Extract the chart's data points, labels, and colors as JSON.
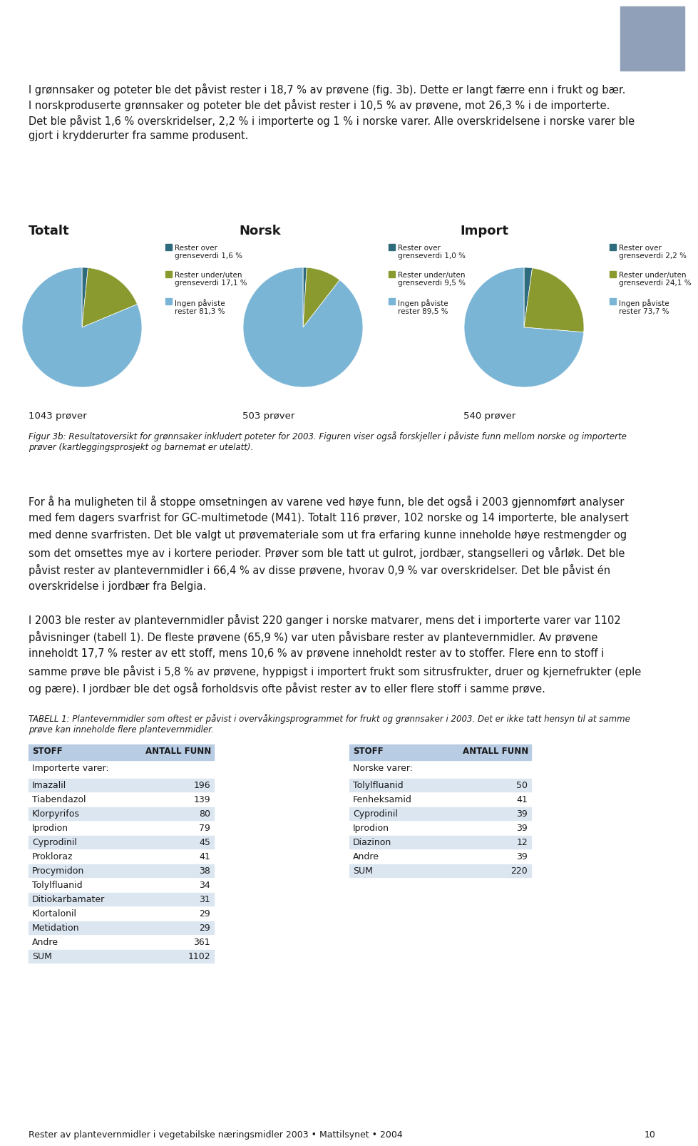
{
  "page_bg": "#ffffff",
  "top_rect_color": "#8fa0b8",
  "text_color": "#1a1a1a",
  "header_text": [
    "I grønnsaker og poteter ble det påvist rester i 18,7 % av prøvene (fig. 3b). Dette er langt færre enn i frukt og bær.",
    "I norskproduserte grønnsaker og poteter ble det påvist rester i 10,5 % av prøvene, mot 26,3 % i de importerte.",
    "Det ble påvist 1,6 % overskridelser, 2,2 % i importerte og 1 % i norske varer. Alle overskridelsene i norske varer ble",
    "gjort i krydderurter fra samme produsent."
  ],
  "pie_titles": [
    "Totalt",
    "Norsk",
    "Import"
  ],
  "pie_data": [
    [
      1.6,
      17.1,
      81.3
    ],
    [
      1.0,
      9.5,
      89.5
    ],
    [
      2.2,
      24.1,
      73.7
    ]
  ],
  "pie_colors": [
    "#2e6b7c",
    "#8a9a2e",
    "#7bb5d6"
  ],
  "pie_legend_labels": [
    [
      "Rester over\ngrenseverdi 1,6 %",
      "Rester under/uten\ngrenseverdi 17,1 %",
      "Ingen påviste\nrester 81,3 %"
    ],
    [
      "Rester over\ngrenseverdi 1,0 %",
      "Rester under/uten\ngrenseverdi 9,5 %",
      "Ingen påviste\nrester 89,5 %"
    ],
    [
      "Rester over\ngrenseverdi 2,2 %",
      "Rester under/uten\ngrenseverdi 24,1 %",
      "Ingen påviste\nrester 73,7 %"
    ]
  ],
  "sample_counts": [
    "1043 prøver",
    "503 prøver",
    "540 prøver"
  ],
  "fig_caption_line1": "Figur 3b: Resultatoversikt for grønnsaker inkludert poteter for 2003. Figuren viser også forskjeller i påviste funn mellom norske og importerte",
  "fig_caption_line2": "prøver (kartleggingsprosjekt og barnemat er utelatt).",
  "body_text1": [
    "For å ha muligheten til å stoppe omsetningen av varene ved høye funn, ble det også i 2003 gjennomført analyser",
    "med fem dagers svarfrist for GC-multimetode (M41). Totalt 116 prøver, 102 norske og 14 importerte, ble analysert",
    "med denne svarfristen. Det ble valgt ut prøvemateriale som ut fra erfaring kunne inneholde høye restmengder og",
    "som det omsettes mye av i kortere perioder. Prøver som ble tatt ut gulrot, jordbær, stangselleri og vårløk. Det ble",
    "påvist rester av plantevernmidler i 66,4 % av disse prøvene, hvorav 0,9 % var overskridelser. Det ble påvist én",
    "overskridelse i jordbær fra Belgia."
  ],
  "body_text2": [
    "I 2003 ble rester av plantevernmidler påvist 220 ganger i norske matvarer, mens det i importerte varer var 1102",
    "påvisninger (tabell 1). De fleste prøvene (65,9 %) var uten påvisbare rester av plantevernmidler. Av prøvene",
    "inneholdt 17,7 % rester av ett stoff, mens 10,6 % av prøvene inneholdt rester av to stoffer. Flere enn to stoff i",
    "samme prøve ble påvist i 5,8 % av prøvene, hyppigst i importert frukt som sitrusfrukter, druer og kjernefrukter (eple",
    "og pære). I jordbær ble det også forholdsvis ofte påvist rester av to eller flere stoff i samme prøve."
  ],
  "table_caption_line1": "TABELL 1: Plantevernmidler som oftest er påvist i overvåkingsprogrammet for frukt og grønnsaker i 2003. Det er ikke tatt hensyn til at samme",
  "table_caption_line2": "prøve kan inneholde flere plantevernmidler.",
  "table1_header": [
    "STOFF",
    "ANTALL FUNN"
  ],
  "table1_subheader": "Importerte varer:",
  "table1_rows": [
    [
      "Imazalil",
      "196"
    ],
    [
      "Tiabendazol",
      "139"
    ],
    [
      "Klorpyrifos",
      "80"
    ],
    [
      "Iprodion",
      "79"
    ],
    [
      "Cyprodinil",
      "45"
    ],
    [
      "Prokloraz",
      "41"
    ],
    [
      "Procymidon",
      "38"
    ],
    [
      "Tolylfluanid",
      "34"
    ],
    [
      "Ditiokarbamater",
      "31"
    ],
    [
      "Klortalonil",
      "29"
    ],
    [
      "Metidation",
      "29"
    ],
    [
      "Andre",
      "361"
    ],
    [
      "SUM",
      "1102"
    ]
  ],
  "table2_header": [
    "STOFF",
    "ANTALL FUNN"
  ],
  "table2_subheader": "Norske varer:",
  "table2_rows": [
    [
      "Tolylfluanid",
      "50"
    ],
    [
      "Fenheksamid",
      "41"
    ],
    [
      "Cyprodinil",
      "39"
    ],
    [
      "Iprodion",
      "39"
    ],
    [
      "Diazinon",
      "12"
    ],
    [
      "Andre",
      "39"
    ],
    [
      "SUM",
      "220"
    ]
  ],
  "table_header_bg": "#b8cce4",
  "table_row_bg_alt": "#dce6f1",
  "footer_text": "Rester av plantevernmidler i vegetabilske næringsmidler 2003 • Mattilsynet • 2004",
  "footer_page": "10"
}
